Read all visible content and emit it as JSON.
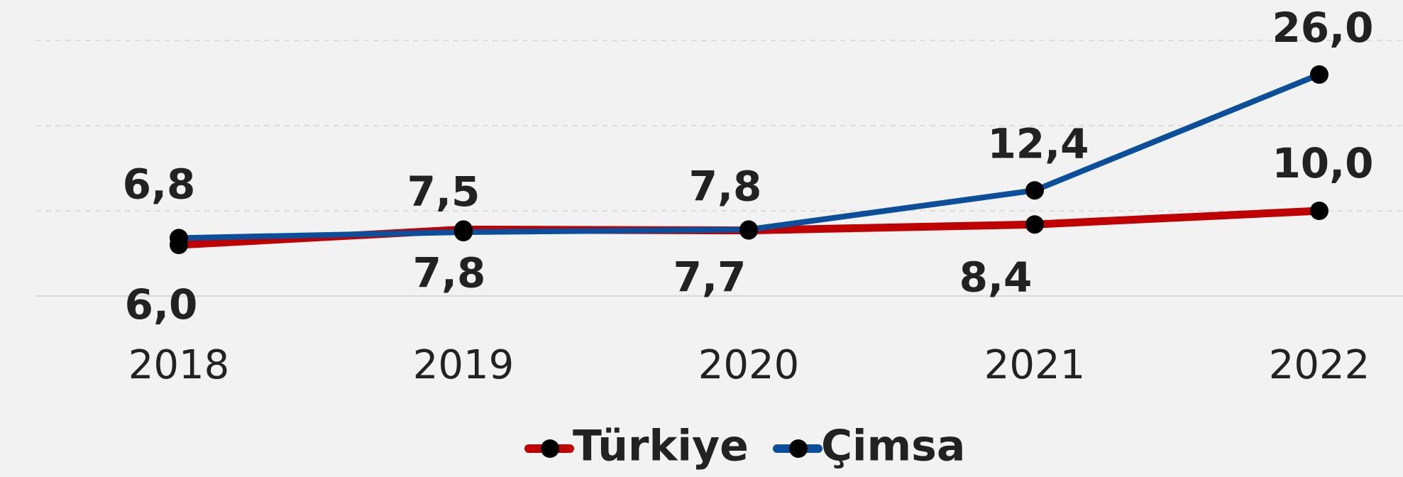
{
  "chart_data": {
    "type": "line",
    "categories": [
      "2018",
      "2019",
      "2020",
      "2021",
      "2022"
    ],
    "series": [
      {
        "name": "Türkiye",
        "color": "#c00000",
        "values": [
          6.0,
          7.8,
          7.7,
          8.4,
          10.0
        ],
        "value_labels": [
          "6,0",
          "7,8",
          "7,7",
          "8,4",
          "10,0"
        ]
      },
      {
        "name": "Çimsa",
        "color": "#0b4f9c",
        "values": [
          6.8,
          7.5,
          7.8,
          12.4,
          26.0
        ],
        "value_labels": [
          "6,8",
          "7,5",
          "7,8",
          "12,4",
          "26,0"
        ]
      }
    ],
    "ylim": [
      0,
      30
    ],
    "yticks": [
      0,
      10,
      20,
      30
    ],
    "grid": true,
    "legend": "bottom"
  }
}
